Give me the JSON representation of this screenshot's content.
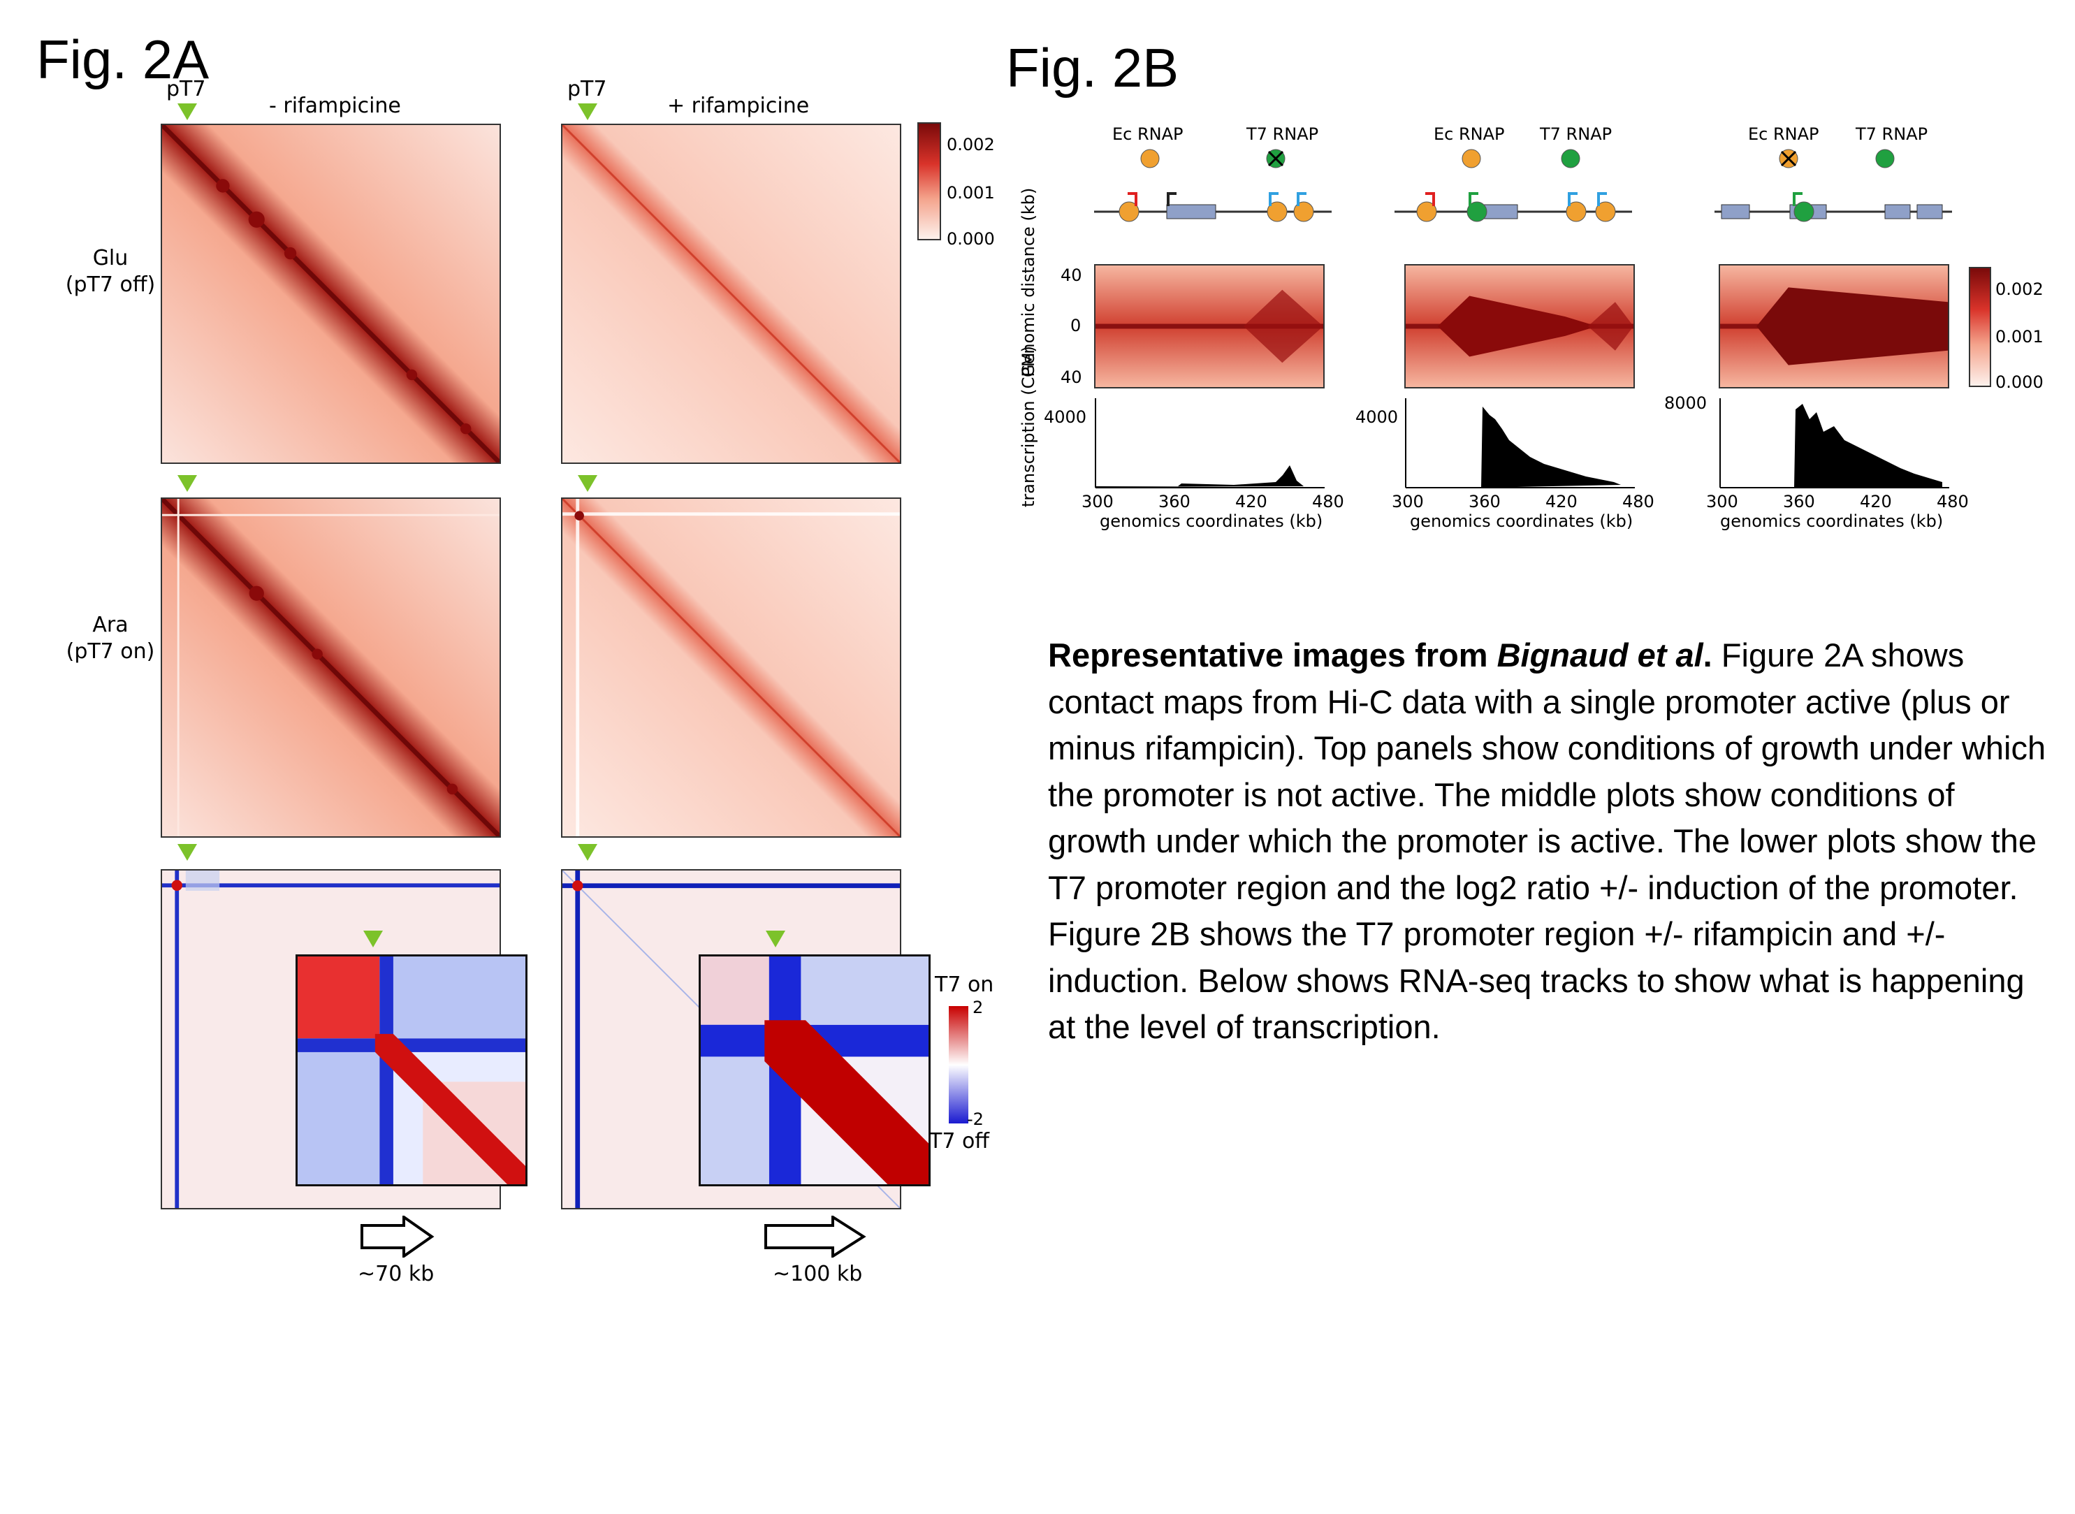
{
  "fig2a": {
    "label": "Fig. 2A",
    "pt7_label": "pT7",
    "col_minus": "- rifampicine",
    "col_plus": "+ rifampicine",
    "row1_label_a": "Glu",
    "row1_label_b": "(pT7 off)",
    "row2_label_a": "Ara",
    "row2_label_b": "(pT7 on)",
    "colorbar_ticks": [
      "0.002",
      "0.001",
      "0.000"
    ],
    "ratio_top": "T7 on",
    "ratio_max": "2",
    "ratio_min": "-2",
    "ratio_bottom": "T7 off",
    "arrow_left": "~70 kb",
    "arrow_right": "~100 kb"
  },
  "fig2b": {
    "label": "Fig. 2B",
    "ec_rnap": "Ec RNAP",
    "t7_rnap": "T7 RNAP",
    "yaxis_genomic": "Genomic distance (kb)",
    "genomic_ticks": [
      "40",
      "0",
      "40"
    ],
    "yaxis_transcription": "transcription (CPM)",
    "tx_ticks": [
      "4000",
      "4000",
      "8000"
    ],
    "x_ticks": [
      "300",
      "360",
      "420",
      "480"
    ],
    "xlabel": "genomics coordinates (kb)",
    "colorbar_ticks": [
      "0.002",
      "0.001",
      "0.000"
    ]
  },
  "caption": {
    "bold": "Representative images from ",
    "bold_italic": "Bignaud et al",
    "bold_end": ".",
    "text": " Figure 2A shows contact maps from Hi-C data with a single promoter active (plus or minus rifampicin). Top panels show conditions of growth under which the promoter is not active. The middle plots show conditions of growth under which the promoter is active. The lower plots show the T7 promoter region and the log2 ratio +/- induction of the promoter. Figure 2B shows the T7 promoter region +/- rifampicin and +/- induction. Below shows RNA-seq tracks to show what is happening at the level of transcription."
  },
  "colors": {
    "hic_dark": "#7a0a0a",
    "hic_light": "#fbe3dc",
    "ratio_red": "#c80000",
    "ratio_blue": "#1a1ad0",
    "triangle": "#7cc22a",
    "ec_orange": "#f0a030",
    "t7_green": "#20a040"
  }
}
